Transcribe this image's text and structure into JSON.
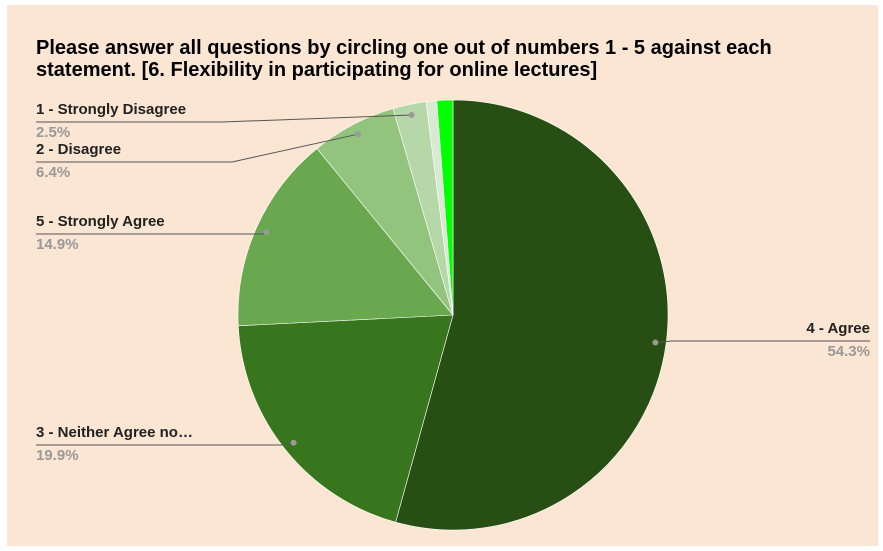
{
  "chart_data": {
    "type": "pie",
    "title": "Please answer all questions by circling one out of numbers 1 - 5 against each statement. [6. Flexibility in participating for online lectures]",
    "slices": [
      {
        "label": "4 - Agree",
        "value": 54.3,
        "pct_text": "54.3%",
        "color": "#274e13"
      },
      {
        "label": "3 - Neither Agree no…",
        "value": 19.9,
        "pct_text": "19.9%",
        "color": "#38761d"
      },
      {
        "label": "5 - Strongly Agree",
        "value": 14.9,
        "pct_text": "14.9%",
        "color": "#6aa84f"
      },
      {
        "label": "2 - Disagree",
        "value": 6.4,
        "pct_text": "6.4%",
        "color": "#93c47d"
      },
      {
        "label": "1 - Strongly Disagree",
        "value": 2.5,
        "pct_text": "2.5%",
        "color": "#b6d7a8"
      },
      {
        "label": "",
        "value": 0.8,
        "pct_text": "",
        "color": "#d9ead3"
      },
      {
        "label": "",
        "value": 1.2,
        "pct_text": "",
        "color": "#00ff00"
      }
    ],
    "start_angle_deg": 0,
    "direction": "clockwise",
    "legend": "labeled-callouts"
  }
}
